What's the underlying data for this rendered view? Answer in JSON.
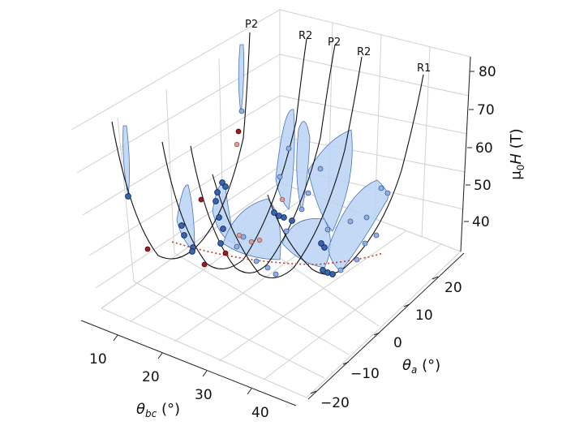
{
  "chart_data": {
    "type": "surface-3d-curves",
    "xlabel": "θ_bc (°)",
    "ylabel": "θ_a (°)",
    "zlabel": "μ0H (T)",
    "x_ticks": [
      "10",
      "20",
      "30",
      "40"
    ],
    "y_ticks": [
      "−20",
      "−10",
      "0",
      "10",
      "20"
    ],
    "z_ticks": [
      "40",
      "50",
      "60",
      "70",
      "80"
    ],
    "curve_labels": [
      "P2",
      "R2",
      "P2",
      "R2",
      "R1"
    ],
    "colors": {
      "curve": "#111111",
      "fill": "#a9c8f0",
      "fill_edge": "#4a74b8",
      "point_blue": "#2f5aa8",
      "point_red": "#8b1a1a",
      "dotted": "#c0392b",
      "grid": "#cfcfcf"
    },
    "grid": true
  }
}
